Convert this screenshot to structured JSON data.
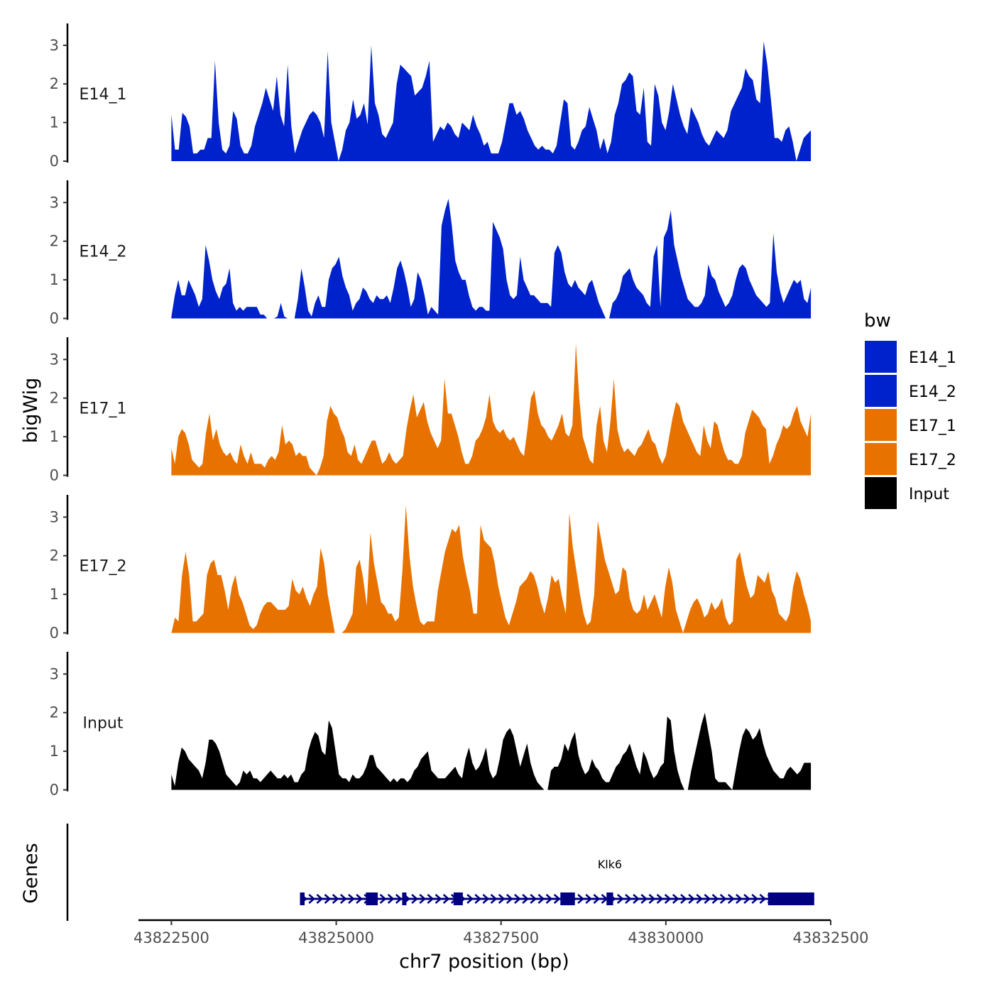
{
  "chart_data": {
    "type": "area",
    "title": "",
    "xlabel": "chr7 position (bp)",
    "ylabel": "bigWig",
    "genes_panel_label": "Genes",
    "x_range": [
      43822500,
      43832200
    ],
    "xlim": [
      43822000,
      43832500
    ],
    "x_ticks": [
      43822500,
      43825000,
      43827500,
      43830000,
      43832500
    ],
    "x_tick_labels": [
      "43822500",
      "43825000",
      "43827500",
      "43830000",
      "43832500"
    ],
    "ylim": [
      0,
      3.6
    ],
    "y_ticks": [
      0,
      1,
      2,
      3
    ],
    "y_tick_labels": [
      "0",
      "1",
      "2",
      "3"
    ],
    "legend": {
      "title": "bw",
      "entries": [
        {
          "label": "E14_1",
          "color": "#0022CC"
        },
        {
          "label": "E14_2",
          "color": "#0022CC"
        },
        {
          "label": "E17_1",
          "color": "#E87200"
        },
        {
          "label": "E17_2",
          "color": "#E87200"
        },
        {
          "label": "Input",
          "color": "#000000"
        }
      ]
    },
    "series": [
      {
        "name": "E14_1",
        "color": "#0022CC",
        "values": [
          1.2,
          0.3,
          0.3,
          1.25,
          1.15,
          0.9,
          0.2,
          0.2,
          0.3,
          0.3,
          0.6,
          0.6,
          2.6,
          1.0,
          0.3,
          0.2,
          0.4,
          1.3,
          1.1,
          0.4,
          0.2,
          0.2,
          0.4,
          0.9,
          1.2,
          1.5,
          1.9,
          1.6,
          1.3,
          2.2,
          1.2,
          0.9,
          2.5,
          0.9,
          0.2,
          0.5,
          0.8,
          1.0,
          1.2,
          1.3,
          1.2,
          1.0,
          0.6,
          2.85,
          1.0,
          0.5,
          0.0,
          0.3,
          0.8,
          1.0,
          1.6,
          1.1,
          1.2,
          1.5,
          0.95,
          3.0,
          1.5,
          1.2,
          0.7,
          0.6,
          0.8,
          1.0,
          2.0,
          2.5,
          2.4,
          2.3,
          2.2,
          1.7,
          1.8,
          1.9,
          2.2,
          2.6,
          0.5,
          0.7,
          0.9,
          0.8,
          1.0,
          0.9,
          0.7,
          0.6,
          1.0,
          0.9,
          0.8,
          1.2,
          0.9,
          0.7,
          0.4,
          0.5,
          0.2,
          0.2,
          0.2,
          0.5,
          1.0,
          1.5,
          1.5,
          1.2,
          1.3,
          1.1,
          0.8,
          0.6,
          0.4,
          0.3,
          0.4,
          0.3,
          0.3,
          0.2,
          0.4,
          1.0,
          1.6,
          1.5,
          0.4,
          0.3,
          0.5,
          0.8,
          0.9,
          1.4,
          1.1,
          0.8,
          0.3,
          0.6,
          0.2,
          0.5,
          1.2,
          1.5,
          2.0,
          2.1,
          2.3,
          2.2,
          1.3,
          1.2,
          1.9,
          0.5,
          0.4,
          2.0,
          1.7,
          1.0,
          0.8,
          1.3,
          2.0,
          1.6,
          1.2,
          0.9,
          0.7,
          1.4,
          1.2,
          1.0,
          0.7,
          0.5,
          0.4,
          0.6,
          0.8,
          0.7,
          0.6,
          0.8,
          1.3,
          1.5,
          1.7,
          1.9,
          2.4,
          2.2,
          2.1,
          1.6,
          1.5,
          3.1,
          2.5,
          1.6,
          0.6,
          0.6,
          0.5,
          0.8,
          0.9,
          0.5,
          0.0,
          0.3,
          0.6,
          0.7,
          0.8
        ]
      },
      {
        "name": "E14_2",
        "color": "#0022CC",
        "values": [
          0.05,
          0.6,
          1.0,
          0.6,
          0.6,
          1.0,
          0.8,
          0.6,
          0.3,
          0.5,
          1.9,
          1.5,
          1.0,
          0.7,
          0.5,
          0.8,
          0.9,
          1.3,
          0.4,
          0.2,
          0.3,
          0.2,
          0.3,
          0.3,
          0.3,
          0.3,
          0.1,
          0.1,
          0.0,
          0.0,
          0.0,
          0.05,
          0.4,
          0.05,
          0.0,
          0.0,
          0.0,
          0.5,
          1.3,
          0.8,
          0.2,
          0.05,
          0.4,
          0.6,
          0.3,
          0.3,
          1.0,
          1.3,
          1.4,
          1.6,
          1.1,
          0.8,
          0.6,
          0.2,
          0.4,
          0.5,
          0.8,
          0.7,
          0.5,
          0.4,
          0.6,
          0.5,
          0.5,
          0.6,
          0.4,
          0.8,
          1.3,
          1.5,
          1.2,
          0.8,
          0.3,
          0.5,
          1.2,
          1.0,
          0.6,
          0.1,
          0.3,
          0.2,
          0.1,
          2.4,
          2.8,
          3.1,
          2.4,
          1.5,
          1.2,
          1.0,
          1.0,
          0.6,
          0.3,
          0.2,
          0.3,
          0.3,
          0.2,
          0.2,
          2.5,
          2.3,
          2.1,
          1.8,
          1.0,
          0.6,
          0.5,
          0.6,
          1.6,
          1.0,
          0.8,
          0.6,
          0.6,
          0.5,
          0.4,
          0.4,
          0.4,
          0.3,
          1.7,
          1.9,
          1.7,
          1.2,
          0.9,
          0.8,
          1.0,
          0.8,
          0.7,
          0.6,
          0.9,
          1.0,
          0.7,
          0.4,
          0.2,
          0.0,
          0.0,
          0.4,
          0.5,
          0.7,
          1.1,
          1.2,
          1.3,
          1.0,
          0.8,
          0.7,
          0.6,
          0.4,
          0.3,
          1.6,
          1.9,
          0.3,
          2.1,
          2.3,
          2.8,
          1.9,
          1.5,
          1.1,
          0.8,
          0.5,
          0.4,
          0.3,
          0.3,
          0.4,
          0.6,
          1.4,
          1.1,
          1.0,
          0.7,
          0.5,
          0.3,
          0.4,
          0.6,
          1.0,
          1.3,
          1.4,
          1.3,
          1.0,
          0.8,
          0.6,
          0.5,
          0.4,
          0.3,
          0.4,
          2.2,
          1.2,
          0.7,
          0.4,
          0.6,
          0.8,
          1.0,
          0.9,
          1.0,
          0.5,
          0.4,
          0.8
        ]
      },
      {
        "name": "E17_1",
        "color": "#E87200",
        "values": [
          0.7,
          0.3,
          1.0,
          1.2,
          1.1,
          0.8,
          0.4,
          0.3,
          0.2,
          0.3,
          1.1,
          1.6,
          0.9,
          1.2,
          0.8,
          0.6,
          0.5,
          0.6,
          0.4,
          0.3,
          0.8,
          0.5,
          0.3,
          0.6,
          0.3,
          0.3,
          0.3,
          0.2,
          0.4,
          0.5,
          0.4,
          0.6,
          1.3,
          0.8,
          0.9,
          0.8,
          0.5,
          0.6,
          0.5,
          0.5,
          0.2,
          0.1,
          0.0,
          0.2,
          0.5,
          1.4,
          1.8,
          1.6,
          1.5,
          1.2,
          1.0,
          0.6,
          0.5,
          0.8,
          0.4,
          0.3,
          0.5,
          0.7,
          0.9,
          0.9,
          0.6,
          0.3,
          0.4,
          0.6,
          0.4,
          0.3,
          0.4,
          0.5,
          1.2,
          1.7,
          2.1,
          1.5,
          1.7,
          1.9,
          1.4,
          1.1,
          0.9,
          0.7,
          0.9,
          2.5,
          1.6,
          1.6,
          1.3,
          1.0,
          0.6,
          0.3,
          0.3,
          0.5,
          0.9,
          1.0,
          1.2,
          1.5,
          2.1,
          1.4,
          1.2,
          1.1,
          1.2,
          1.0,
          0.9,
          1.0,
          0.8,
          0.6,
          0.5,
          1.2,
          2.0,
          2.2,
          1.6,
          1.3,
          1.2,
          1.0,
          0.9,
          1.1,
          1.3,
          1.6,
          1.1,
          1.0,
          1.3,
          3.4,
          2.0,
          1.0,
          0.7,
          0.4,
          0.3,
          1.3,
          1.8,
          0.9,
          0.6,
          1.4,
          2.5,
          1.2,
          0.8,
          0.6,
          0.7,
          0.6,
          0.5,
          0.7,
          0.8,
          1.0,
          1.2,
          0.9,
          0.8,
          0.5,
          0.3,
          0.5,
          1.0,
          1.5,
          1.9,
          1.8,
          1.4,
          1.2,
          1.0,
          0.8,
          0.6,
          0.5,
          1.3,
          0.9,
          0.7,
          1.4,
          1.3,
          0.9,
          0.6,
          0.4,
          0.4,
          0.3,
          0.3,
          0.5,
          1.1,
          1.4,
          1.7,
          1.6,
          1.5,
          1.3,
          1.2,
          0.3,
          0.5,
          0.8,
          1.0,
          1.3,
          1.2,
          1.3,
          1.6,
          1.8,
          1.4,
          1.2,
          1.0,
          1.6
        ]
      },
      {
        "name": "E17_2",
        "color": "#E87200",
        "values": [
          0.0,
          0.4,
          0.3,
          1.5,
          2.1,
          1.5,
          0.3,
          0.3,
          0.4,
          0.5,
          1.5,
          1.8,
          1.9,
          1.5,
          1.5,
          1.1,
          0.6,
          1.2,
          1.5,
          1.0,
          0.8,
          0.5,
          0.2,
          0.1,
          0.2,
          0.5,
          0.7,
          0.8,
          0.8,
          0.7,
          0.6,
          0.6,
          0.6,
          0.7,
          1.4,
          1.1,
          1.0,
          1.2,
          0.9,
          0.7,
          1.0,
          1.2,
          2.2,
          1.8,
          1.0,
          0.5,
          0.0,
          0.0,
          0.0,
          0.1,
          0.3,
          0.5,
          1.7,
          1.9,
          1.4,
          0.7,
          2.6,
          1.8,
          1.3,
          0.8,
          0.7,
          0.5,
          0.5,
          0.3,
          0.4,
          1.6,
          3.3,
          2.0,
          1.2,
          0.7,
          0.3,
          0.2,
          0.3,
          0.3,
          0.3,
          1.1,
          1.6,
          2.1,
          2.4,
          2.7,
          2.6,
          2.8,
          2.0,
          1.5,
          1.1,
          0.5,
          0.5,
          2.8,
          2.4,
          2.3,
          2.2,
          1.8,
          1.2,
          0.8,
          0.4,
          0.2,
          0.5,
          0.8,
          1.2,
          1.3,
          1.4,
          1.6,
          1.5,
          1.2,
          0.8,
          0.5,
          0.9,
          1.5,
          1.3,
          1.4,
          0.9,
          0.5,
          3.1,
          2.2,
          1.6,
          1.0,
          0.5,
          0.2,
          0.3,
          1.0,
          2.9,
          2.4,
          1.9,
          1.6,
          1.3,
          1.0,
          1.1,
          1.7,
          1.6,
          0.9,
          0.6,
          0.5,
          0.6,
          1.0,
          0.6,
          0.8,
          1.0,
          0.7,
          0.4,
          1.2,
          1.7,
          1.3,
          0.6,
          0.3,
          0.0,
          0.3,
          0.6,
          0.8,
          0.9,
          0.7,
          0.4,
          0.5,
          0.8,
          0.6,
          0.7,
          0.9,
          0.4,
          0.2,
          0.3,
          1.9,
          2.1,
          1.6,
          1.2,
          0.9,
          1.0,
          1.5,
          1.4,
          1.3,
          1.6,
          1.1,
          0.9,
          0.5,
          0.4,
          0.3,
          0.5,
          1.2,
          1.6,
          1.4,
          1.0,
          0.7,
          0.3
        ]
      },
      {
        "name": "Input",
        "color": "#000000",
        "values": [
          0.4,
          0.1,
          0.7,
          1.1,
          1.0,
          0.8,
          0.7,
          0.6,
          0.5,
          0.3,
          0.7,
          1.3,
          1.3,
          1.2,
          1.0,
          0.7,
          0.4,
          0.3,
          0.2,
          0.1,
          0.2,
          0.5,
          0.4,
          0.5,
          0.3,
          0.3,
          0.2,
          0.3,
          0.4,
          0.5,
          0.4,
          0.3,
          0.3,
          0.4,
          0.3,
          0.4,
          0.2,
          0.2,
          0.4,
          0.5,
          1.0,
          1.3,
          1.5,
          1.4,
          1.0,
          0.9,
          1.8,
          1.6,
          1.0,
          0.4,
          0.3,
          0.3,
          0.2,
          0.4,
          0.3,
          0.3,
          0.4,
          0.6,
          0.9,
          0.9,
          0.6,
          0.5,
          0.4,
          0.3,
          0.2,
          0.3,
          0.2,
          0.3,
          0.3,
          0.2,
          0.3,
          0.5,
          0.6,
          0.8,
          0.9,
          1.0,
          0.5,
          0.4,
          0.3,
          0.3,
          0.3,
          0.4,
          0.5,
          0.6,
          0.4,
          0.3,
          0.8,
          1.1,
          0.7,
          0.5,
          0.6,
          0.8,
          1.1,
          0.5,
          0.3,
          0.4,
          0.8,
          1.3,
          1.5,
          1.6,
          1.4,
          1.0,
          0.6,
          0.9,
          1.2,
          0.7,
          0.4,
          0.2,
          0.1,
          0.0,
          0.0,
          0.5,
          0.6,
          0.6,
          0.8,
          1.2,
          1.0,
          1.3,
          1.5,
          0.9,
          0.6,
          0.4,
          0.5,
          0.8,
          0.6,
          0.5,
          0.3,
          0.2,
          0.2,
          0.4,
          0.6,
          0.7,
          0.9,
          1.0,
          1.2,
          0.9,
          0.6,
          0.4,
          1.0,
          0.8,
          0.5,
          0.3,
          0.4,
          0.6,
          0.7,
          1.9,
          1.8,
          1.0,
          0.5,
          0.2,
          0.0,
          0.0,
          0.5,
          0.9,
          1.3,
          1.7,
          2.0,
          1.5,
          1.0,
          0.3,
          0.2,
          0.2,
          0.2,
          0.1,
          0.0,
          0.5,
          1.0,
          1.4,
          1.6,
          1.5,
          1.3,
          1.4,
          1.6,
          1.2,
          0.9,
          0.7,
          0.5,
          0.4,
          0.3,
          0.3,
          0.5,
          0.6,
          0.5,
          0.4,
          0.5,
          0.7,
          0.7,
          0.7
        ]
      }
    ],
    "gene": {
      "name": "Klk6",
      "strand": "+",
      "start": 43824450,
      "end": 43832250,
      "exons": [
        [
          43824450,
          43824520
        ],
        [
          43825450,
          43825630
        ],
        [
          43826000,
          43826060
        ],
        [
          43826780,
          43826920
        ],
        [
          43828400,
          43828620
        ],
        [
          43829100,
          43829200
        ],
        [
          43831550,
          43832250
        ]
      ]
    }
  }
}
